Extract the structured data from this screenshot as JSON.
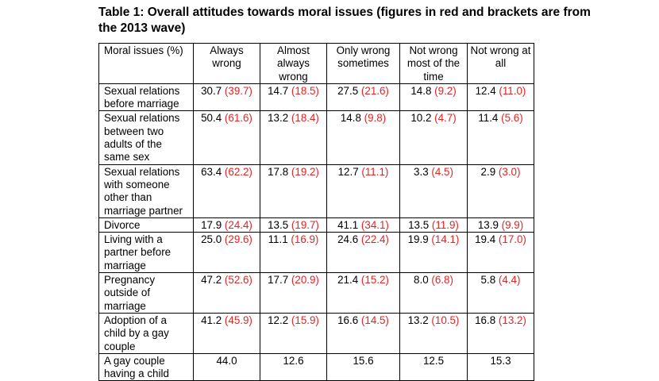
{
  "title": "Table 1: Overall attitudes towards moral issues (figures in red and brackets are from the 2013 wave)",
  "headers": [
    "Moral issues (%)",
    "Always wrong",
    "Almost always wrong",
    "Only wrong sometimes",
    "Not wrong most of the time",
    "Not wrong at all"
  ],
  "colors": {
    "text": "#000000",
    "prior_wave": "#e32424"
  },
  "rows": [
    {
      "issue": "Sexual relations before marriage",
      "cells": [
        {
          "v": "30.7",
          "p": "(39.7)"
        },
        {
          "v": "14.7",
          "p": "(18.5)"
        },
        {
          "v": "27.5",
          "p": "(21.6)"
        },
        {
          "v": "14.8",
          "p": "(9.2)"
        },
        {
          "v": "12.4",
          "p": "(11.0)"
        }
      ]
    },
    {
      "issue": "Sexual relations between two adults of the same sex",
      "cells": [
        {
          "v": "50.4",
          "p": "(61.6)"
        },
        {
          "v": "13.2",
          "p": "(18.4)"
        },
        {
          "v": "14.8",
          "p": "(9.8)"
        },
        {
          "v": "10.2",
          "p": "(4.7)"
        },
        {
          "v": "11.4",
          "p": "(5.6)"
        }
      ]
    },
    {
      "issue": "Sexual relations with someone other than marriage partner",
      "cells": [
        {
          "v": "63.4",
          "p": "(62.2)"
        },
        {
          "v": "17.8",
          "p": "(19.2)"
        },
        {
          "v": "12.7",
          "p": "(11.1)"
        },
        {
          "v": "3.3",
          "p": "(4.5)"
        },
        {
          "v": "2.9",
          "p": "(3.0)"
        }
      ]
    },
    {
      "issue": "Divorce",
      "cells": [
        {
          "v": "17.9",
          "p": "(24.4)"
        },
        {
          "v": "13.5",
          "p": "(19.7)"
        },
        {
          "v": "41.1",
          "p": "(34.1)"
        },
        {
          "v": "13.5",
          "p": "(11.9)"
        },
        {
          "v": "13.9",
          "p": "(9.9)"
        }
      ]
    },
    {
      "issue": "Living with a partner before marriage",
      "cells": [
        {
          "v": "25.0",
          "p": "(29.6)"
        },
        {
          "v": "11.1",
          "p": "(16.9)"
        },
        {
          "v": "24.6",
          "p": "(22.4)"
        },
        {
          "v": "19.9",
          "p": "(14.1)"
        },
        {
          "v": "19.4",
          "p": "(17.0)"
        }
      ]
    },
    {
      "issue": "Pregnancy outside of marriage",
      "cells": [
        {
          "v": "47.2",
          "p": "(52.6)"
        },
        {
          "v": "17.7",
          "p": "(20.9)"
        },
        {
          "v": "21.4",
          "p": "(15.2)"
        },
        {
          "v": "8.0",
          "p": "(6.8)"
        },
        {
          "v": "5.8",
          "p": "(4.4)"
        }
      ]
    },
    {
      "issue": "Adoption of a child by a gay couple",
      "cells": [
        {
          "v": "41.2",
          "p": "(45.9)"
        },
        {
          "v": "12.2",
          "p": "(15.9)"
        },
        {
          "v": "16.6",
          "p": "(14.5)"
        },
        {
          "v": "13.2",
          "p": "(10.5)"
        },
        {
          "v": "16.8",
          "p": "(13.2)"
        }
      ]
    },
    {
      "issue": "A gay couple having a child",
      "cells": [
        {
          "v": "44.0",
          "p": ""
        },
        {
          "v": "12.6",
          "p": ""
        },
        {
          "v": "15.6",
          "p": ""
        },
        {
          "v": "12.5",
          "p": ""
        },
        {
          "v": "15.3",
          "p": ""
        }
      ]
    }
  ]
}
